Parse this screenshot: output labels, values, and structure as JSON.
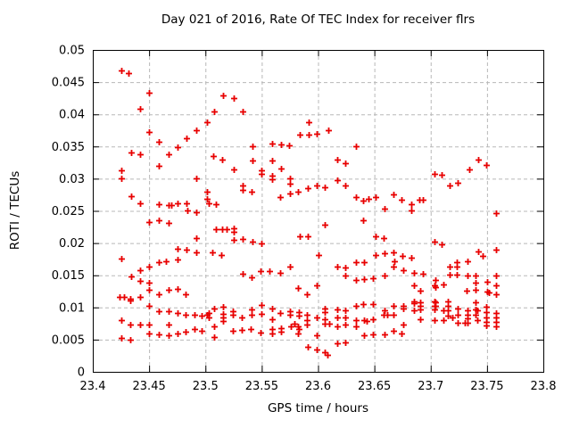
{
  "chart_data": {
    "type": "scatter",
    "title": "Day 021 of 2016, Rate Of TEC Index for receiver flrs",
    "xlabel": "GPS time / hours",
    "ylabel": "ROTI / TECUs",
    "xlim": [
      23.4,
      23.8
    ],
    "ylim": [
      0,
      0.05
    ],
    "x_ticks": [
      23.4,
      23.45,
      23.5,
      23.55,
      23.6,
      23.65,
      23.7,
      23.75,
      23.8
    ],
    "x_tick_labels": [
      "23.4",
      "23.45",
      "23.5",
      "23.55",
      "23.6",
      "23.65",
      "23.7",
      "23.75",
      "23.8"
    ],
    "y_ticks": [
      0,
      0.005,
      0.01,
      0.015,
      0.02,
      0.025,
      0.03,
      0.035,
      0.04,
      0.045,
      0.05
    ],
    "y_tick_labels": [
      "0",
      "0.005",
      "0.01",
      "0.015",
      "0.02",
      "0.025",
      "0.03",
      "0.035",
      "0.04",
      "0.045",
      "0.05"
    ],
    "grid": true,
    "legend": "none",
    "marker": "plus",
    "colors": {
      "marker": "#e80000",
      "grid": "#b8b8b8",
      "border": "#000000"
    },
    "points": [
      [
        23.425,
        0.0468
      ],
      [
        23.432,
        0.0464
      ],
      [
        23.45,
        0.0434
      ],
      [
        23.442,
        0.0409
      ],
      [
        23.45,
        0.0372
      ],
      [
        23.459,
        0.0358
      ],
      [
        23.475,
        0.0349
      ],
      [
        23.483,
        0.0363
      ],
      [
        23.492,
        0.0376
      ],
      [
        23.501,
        0.0388
      ],
      [
        23.434,
        0.0341
      ],
      [
        23.442,
        0.0338
      ],
      [
        23.467,
        0.0338
      ],
      [
        23.507,
        0.0335
      ],
      [
        23.515,
        0.033
      ],
      [
        23.516,
        0.0429
      ],
      [
        23.525,
        0.0425
      ],
      [
        23.508,
        0.0405
      ],
      [
        23.533,
        0.0404
      ],
      [
        23.525,
        0.0315
      ],
      [
        23.542,
        0.035
      ],
      [
        23.542,
        0.0328
      ],
      [
        23.55,
        0.0313
      ],
      [
        23.55,
        0.0308
      ],
      [
        23.559,
        0.0354
      ],
      [
        23.559,
        0.0328
      ],
      [
        23.567,
        0.0353
      ],
      [
        23.574,
        0.0352
      ],
      [
        23.584,
        0.0369
      ],
      [
        23.592,
        0.0388
      ],
      [
        23.592,
        0.0369
      ],
      [
        23.599,
        0.037
      ],
      [
        23.609,
        0.0376
      ],
      [
        23.634,
        0.035
      ],
      [
        23.617,
        0.0329
      ],
      [
        23.624,
        0.0324
      ],
      [
        23.742,
        0.033
      ],
      [
        23.749,
        0.0322
      ],
      [
        23.734,
        0.0314
      ],
      [
        23.459,
        0.032
      ],
      [
        23.425,
        0.0313
      ],
      [
        23.425,
        0.0301
      ],
      [
        23.492,
        0.0301
      ],
      [
        23.434,
        0.0273
      ],
      [
        23.442,
        0.0262
      ],
      [
        23.459,
        0.0261
      ],
      [
        23.467,
        0.0259
      ],
      [
        23.47,
        0.0259
      ],
      [
        23.475,
        0.0262
      ],
      [
        23.483,
        0.0262
      ],
      [
        23.484,
        0.0251
      ],
      [
        23.492,
        0.0248
      ],
      [
        23.501,
        0.028
      ],
      [
        23.501,
        0.0269
      ],
      [
        23.45,
        0.0233
      ],
      [
        23.459,
        0.0235
      ],
      [
        23.467,
        0.0231
      ],
      [
        23.492,
        0.0208
      ],
      [
        23.475,
        0.0191
      ],
      [
        23.483,
        0.019
      ],
      [
        23.492,
        0.0185
      ],
      [
        23.425,
        0.0176
      ],
      [
        23.465,
        0.0172
      ],
      [
        23.475,
        0.0174
      ],
      [
        23.459,
        0.017
      ],
      [
        23.559,
        0.0305
      ],
      [
        23.559,
        0.0299
      ],
      [
        23.567,
        0.0316
      ],
      [
        23.575,
        0.03
      ],
      [
        23.575,
        0.0292
      ],
      [
        23.533,
        0.0289
      ],
      [
        23.533,
        0.0283
      ],
      [
        23.541,
        0.028
      ],
      [
        23.566,
        0.0272
      ],
      [
        23.575,
        0.0277
      ],
      [
        23.582,
        0.028
      ],
      [
        23.591,
        0.0286
      ],
      [
        23.599,
        0.0289
      ],
      [
        23.503,
        0.0262
      ],
      [
        23.509,
        0.026
      ],
      [
        23.509,
        0.0221
      ],
      [
        23.515,
        0.0221
      ],
      [
        23.519,
        0.0221
      ],
      [
        23.525,
        0.0223
      ],
      [
        23.525,
        0.0218
      ],
      [
        23.525,
        0.0205
      ],
      [
        23.533,
        0.0207
      ],
      [
        23.542,
        0.0202
      ],
      [
        23.55,
        0.02
      ],
      [
        23.584,
        0.0211
      ],
      [
        23.591,
        0.021
      ],
      [
        23.506,
        0.0185
      ],
      [
        23.514,
        0.0182
      ],
      [
        23.6,
        0.0181
      ],
      [
        23.606,
        0.0287
      ],
      [
        23.617,
        0.0298
      ],
      [
        23.624,
        0.0289
      ],
      [
        23.634,
        0.0272
      ],
      [
        23.64,
        0.0266
      ],
      [
        23.645,
        0.0269
      ],
      [
        23.651,
        0.0272
      ],
      [
        23.659,
        0.0254
      ],
      [
        23.667,
        0.0276
      ],
      [
        23.674,
        0.0268
      ],
      [
        23.683,
        0.026
      ],
      [
        23.683,
        0.0251
      ],
      [
        23.69,
        0.0267
      ],
      [
        23.693,
        0.0267
      ],
      [
        23.703,
        0.0307
      ],
      [
        23.71,
        0.0306
      ],
      [
        23.64,
        0.0235
      ],
      [
        23.606,
        0.0228
      ],
      [
        23.651,
        0.021
      ],
      [
        23.658,
        0.0208
      ],
      [
        23.703,
        0.0202
      ],
      [
        23.71,
        0.0198
      ],
      [
        23.651,
        0.0181
      ],
      [
        23.659,
        0.0184
      ],
      [
        23.667,
        0.0185
      ],
      [
        23.675,
        0.018
      ],
      [
        23.683,
        0.0177
      ],
      [
        23.634,
        0.0171
      ],
      [
        23.641,
        0.017
      ],
      [
        23.668,
        0.0172
      ],
      [
        23.717,
        0.029
      ],
      [
        23.724,
        0.0293
      ],
      [
        23.758,
        0.0247
      ],
      [
        23.742,
        0.0187
      ],
      [
        23.758,
        0.019
      ],
      [
        23.746,
        0.018
      ],
      [
        23.733,
        0.0172
      ],
      [
        23.723,
        0.017
      ],
      [
        23.717,
        0.0163
      ],
      [
        23.723,
        0.0164
      ],
      [
        23.45,
        0.0164
      ],
      [
        23.442,
        0.0158
      ],
      [
        23.434,
        0.0148
      ],
      [
        23.442,
        0.0141
      ],
      [
        23.45,
        0.0139
      ],
      [
        23.45,
        0.0127
      ],
      [
        23.424,
        0.0116
      ],
      [
        23.428,
        0.0116
      ],
      [
        23.433,
        0.0114
      ],
      [
        23.433,
        0.0111
      ],
      [
        23.442,
        0.0116
      ],
      [
        23.45,
        0.0103
      ],
      [
        23.459,
        0.0121
      ],
      [
        23.467,
        0.0127
      ],
      [
        23.475,
        0.0129
      ],
      [
        23.482,
        0.0121
      ],
      [
        23.459,
        0.0094
      ],
      [
        23.467,
        0.0094
      ],
      [
        23.475,
        0.0091
      ],
      [
        23.482,
        0.0088
      ],
      [
        23.49,
        0.0088
      ],
      [
        23.497,
        0.0087
      ],
      [
        23.501,
        0.0088
      ],
      [
        23.425,
        0.008
      ],
      [
        23.433,
        0.0073
      ],
      [
        23.442,
        0.0073
      ],
      [
        23.45,
        0.0073
      ],
      [
        23.467,
        0.0073
      ],
      [
        23.45,
        0.006
      ],
      [
        23.459,
        0.0058
      ],
      [
        23.467,
        0.0057
      ],
      [
        23.475,
        0.006
      ],
      [
        23.482,
        0.0062
      ],
      [
        23.425,
        0.0052
      ],
      [
        23.433,
        0.005
      ],
      [
        23.49,
        0.0066
      ],
      [
        23.497,
        0.0064
      ],
      [
        23.533,
        0.0152
      ],
      [
        23.541,
        0.0147
      ],
      [
        23.549,
        0.0157
      ],
      [
        23.557,
        0.0156
      ],
      [
        23.566,
        0.0154
      ],
      [
        23.575,
        0.0163
      ],
      [
        23.582,
        0.013
      ],
      [
        23.59,
        0.012
      ],
      [
        23.599,
        0.0135
      ],
      [
        23.55,
        0.0104
      ],
      [
        23.55,
        0.009
      ],
      [
        23.503,
        0.0091
      ],
      [
        23.503,
        0.0085
      ],
      [
        23.508,
        0.0098
      ],
      [
        23.508,
        0.007
      ],
      [
        23.508,
        0.0054
      ],
      [
        23.516,
        0.0101
      ],
      [
        23.516,
        0.009
      ],
      [
        23.516,
        0.0085
      ],
      [
        23.516,
        0.0079
      ],
      [
        23.524,
        0.0094
      ],
      [
        23.524,
        0.0088
      ],
      [
        23.524,
        0.0064
      ],
      [
        23.532,
        0.0085
      ],
      [
        23.532,
        0.0065
      ],
      [
        23.54,
        0.0067
      ],
      [
        23.541,
        0.0088
      ],
      [
        23.541,
        0.0097
      ],
      [
        23.549,
        0.0061
      ],
      [
        23.559,
        0.0098
      ],
      [
        23.559,
        0.0082
      ],
      [
        23.559,
        0.0067
      ],
      [
        23.559,
        0.006
      ],
      [
        23.566,
        0.0091
      ],
      [
        23.567,
        0.0068
      ],
      [
        23.567,
        0.0062
      ],
      [
        23.575,
        0.0094
      ],
      [
        23.575,
        0.0088
      ],
      [
        23.576,
        0.007
      ],
      [
        23.579,
        0.0075
      ],
      [
        23.583,
        0.0093
      ],
      [
        23.583,
        0.0087
      ],
      [
        23.582,
        0.007
      ],
      [
        23.582,
        0.0059
      ],
      [
        23.583,
        0.0067
      ],
      [
        23.59,
        0.0088
      ],
      [
        23.59,
        0.0081
      ],
      [
        23.59,
        0.0073
      ],
      [
        23.599,
        0.0084
      ],
      [
        23.599,
        0.0057
      ],
      [
        23.591,
        0.0039
      ],
      [
        23.599,
        0.0034
      ],
      [
        23.608,
        0.0027
      ],
      [
        23.61,
        0.0075
      ],
      [
        23.606,
        0.0031
      ],
      [
        23.617,
        0.0164
      ],
      [
        23.624,
        0.0162
      ],
      [
        23.624,
        0.0149
      ],
      [
        23.634,
        0.0142
      ],
      [
        23.641,
        0.0144
      ],
      [
        23.649,
        0.0145
      ],
      [
        23.659,
        0.015
      ],
      [
        23.667,
        0.0164
      ],
      [
        23.676,
        0.0158
      ],
      [
        23.685,
        0.0154
      ],
      [
        23.693,
        0.0152
      ],
      [
        23.685,
        0.0134
      ],
      [
        23.691,
        0.0126
      ],
      [
        23.703,
        0.0135
      ],
      [
        23.711,
        0.0136
      ],
      [
        23.703,
        0.0109
      ],
      [
        23.606,
        0.0098
      ],
      [
        23.606,
        0.0093
      ],
      [
        23.606,
        0.0082
      ],
      [
        23.606,
        0.0075
      ],
      [
        23.617,
        0.0097
      ],
      [
        23.617,
        0.0085
      ],
      [
        23.617,
        0.007
      ],
      [
        23.624,
        0.0096
      ],
      [
        23.624,
        0.0084
      ],
      [
        23.624,
        0.0073
      ],
      [
        23.634,
        0.0103
      ],
      [
        23.634,
        0.0081
      ],
      [
        23.634,
        0.007
      ],
      [
        23.64,
        0.0105
      ],
      [
        23.641,
        0.008
      ],
      [
        23.643,
        0.0079
      ],
      [
        23.641,
        0.0057
      ],
      [
        23.649,
        0.0105
      ],
      [
        23.649,
        0.0082
      ],
      [
        23.649,
        0.0058
      ],
      [
        23.659,
        0.0096
      ],
      [
        23.658,
        0.0088
      ],
      [
        23.661,
        0.0088
      ],
      [
        23.659,
        0.0058
      ],
      [
        23.667,
        0.0103
      ],
      [
        23.667,
        0.0089
      ],
      [
        23.667,
        0.0064
      ],
      [
        23.676,
        0.0103
      ],
      [
        23.676,
        0.0098
      ],
      [
        23.676,
        0.0073
      ],
      [
        23.674,
        0.006
      ],
      [
        23.685,
        0.011
      ],
      [
        23.685,
        0.0106
      ],
      [
        23.685,
        0.0096
      ],
      [
        23.691,
        0.0108
      ],
      [
        23.691,
        0.0103
      ],
      [
        23.691,
        0.0097
      ],
      [
        23.691,
        0.0082
      ],
      [
        23.703,
        0.0103
      ],
      [
        23.703,
        0.0097
      ],
      [
        23.703,
        0.0081
      ],
      [
        23.711,
        0.0096
      ],
      [
        23.711,
        0.008
      ],
      [
        23.617,
        0.0044
      ],
      [
        23.624,
        0.0046
      ],
      [
        23.717,
        0.0151
      ],
      [
        23.723,
        0.0151
      ],
      [
        23.733,
        0.0149
      ],
      [
        23.74,
        0.0149
      ],
      [
        23.758,
        0.0149
      ],
      [
        23.704,
        0.0142
      ],
      [
        23.704,
        0.0131
      ],
      [
        23.732,
        0.0126
      ],
      [
        23.74,
        0.0128
      ],
      [
        23.75,
        0.014
      ],
      [
        23.758,
        0.0135
      ],
      [
        23.75,
        0.0125
      ],
      [
        23.752,
        0.0123
      ],
      [
        23.758,
        0.0121
      ],
      [
        23.74,
        0.0139
      ],
      [
        23.704,
        0.0108
      ],
      [
        23.704,
        0.0103
      ],
      [
        23.715,
        0.011
      ],
      [
        23.715,
        0.0103
      ],
      [
        23.715,
        0.0095
      ],
      [
        23.715,
        0.0087
      ],
      [
        23.724,
        0.0099
      ],
      [
        23.724,
        0.0088
      ],
      [
        23.719,
        0.0085
      ],
      [
        23.724,
        0.0076
      ],
      [
        23.73,
        0.0076
      ],
      [
        23.733,
        0.0096
      ],
      [
        23.733,
        0.0089
      ],
      [
        23.733,
        0.0083
      ],
      [
        23.733,
        0.0076
      ],
      [
        23.74,
        0.0108
      ],
      [
        23.74,
        0.0097
      ],
      [
        23.741,
        0.0095
      ],
      [
        23.74,
        0.0088
      ],
      [
        23.741,
        0.0081
      ],
      [
        23.749,
        0.0101
      ],
      [
        23.749,
        0.0093
      ],
      [
        23.749,
        0.0085
      ],
      [
        23.749,
        0.0078
      ],
      [
        23.749,
        0.0072
      ],
      [
        23.758,
        0.0091
      ],
      [
        23.758,
        0.0085
      ],
      [
        23.758,
        0.0078
      ],
      [
        23.758,
        0.0071
      ]
    ]
  }
}
